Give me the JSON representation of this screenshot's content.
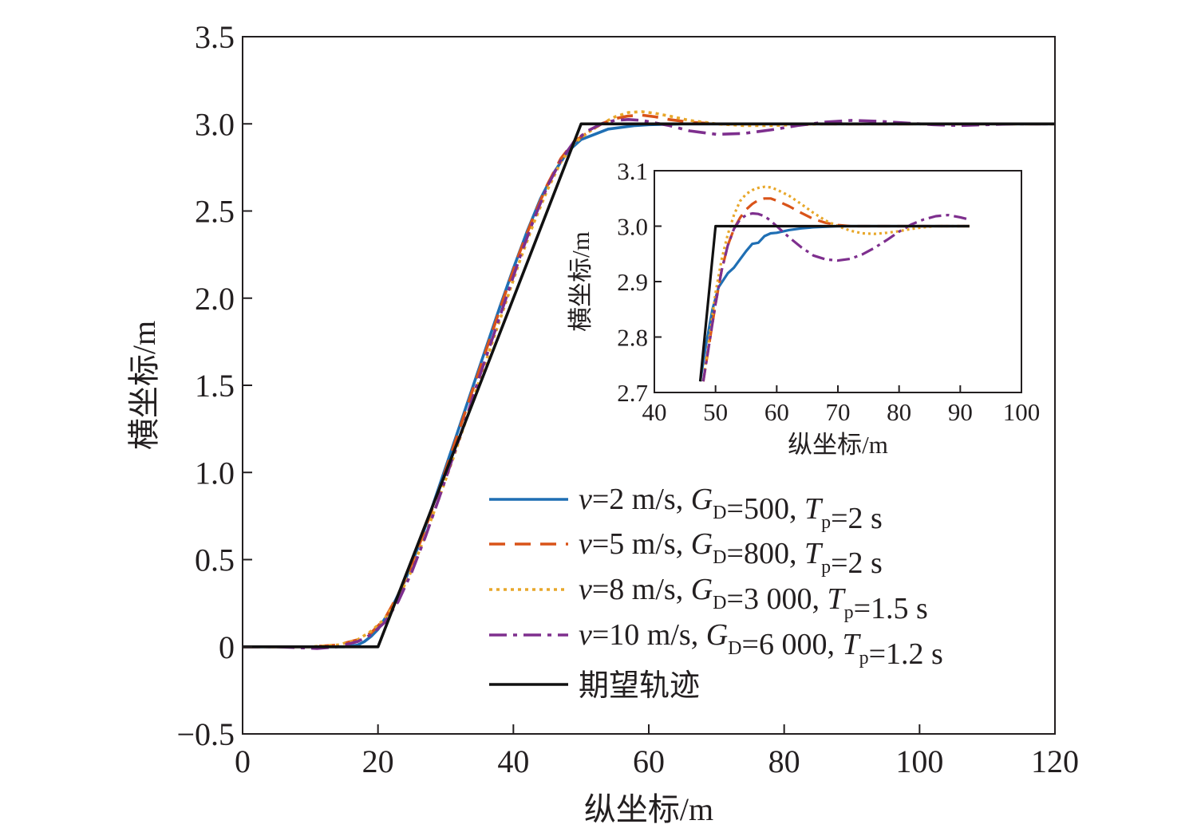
{
  "chart_data": [
    {
      "type": "line",
      "title": "",
      "xlabel": "纵坐标/m",
      "ylabel": "横坐标/m",
      "xlim": [
        0,
        120
      ],
      "ylim": [
        -0.5,
        3.5
      ],
      "xticks": [
        "0",
        "20",
        "40",
        "60",
        "80",
        "100",
        "120"
      ],
      "yticks": [
        "−0.5",
        "0",
        "0.5",
        "1.0",
        "1.5",
        "2.0",
        "2.5",
        "3.0",
        "3.5"
      ],
      "grid": false,
      "legend_position": "bottom-right",
      "legend": [
        {
          "v": "=2 m/s, ",
          "g": "=500, ",
          "t": "=2 s"
        },
        {
          "v": "=5 m/s, ",
          "g": "=800, ",
          "t": "=2 s"
        },
        {
          "v": "=8 m/s, ",
          "g": "=3 000, ",
          "t": "=1.5 s"
        },
        {
          "v": "=10 m/s, ",
          "g": "=6 000, ",
          "t": "=1.2 s"
        }
      ],
      "legend_symbols": {
        "v": "v",
        "g": "G",
        "g_sub": "D",
        "t": "T",
        "t_sub": "p"
      },
      "reference_label": "期望轨迹",
      "series": [
        {
          "key": "v2",
          "color": "#1f6fb4",
          "dash": "solid",
          "points": [
            [
              0,
              0
            ],
            [
              15,
              0
            ],
            [
              17,
              0.01
            ],
            [
              18,
              0.03
            ],
            [
              19,
              0.06
            ],
            [
              20,
              0.1
            ],
            [
              22,
              0.22
            ],
            [
              24,
              0.38
            ],
            [
              26,
              0.58
            ],
            [
              28,
              0.8
            ],
            [
              30,
              1.03
            ],
            [
              32,
              1.26
            ],
            [
              34,
              1.49
            ],
            [
              36,
              1.72
            ],
            [
              38,
              1.95
            ],
            [
              40,
              2.17
            ],
            [
              42,
              2.38
            ],
            [
              44,
              2.57
            ],
            [
              46,
              2.72
            ],
            [
              48,
              2.84
            ],
            [
              50,
              2.91
            ],
            [
              52,
              2.94
            ],
            [
              54,
              2.97
            ],
            [
              56,
              2.98
            ],
            [
              58,
              2.99
            ],
            [
              60,
              2.995
            ],
            [
              65,
              3.0
            ],
            [
              70,
              3.0
            ],
            [
              120,
              3.0
            ]
          ]
        },
        {
          "key": "v5",
          "color": "#d95319",
          "dash": "20 12",
          "points": [
            [
              0,
              0
            ],
            [
              10,
              0
            ],
            [
              14,
              0.01
            ],
            [
              17,
              0.04
            ],
            [
              19,
              0.08
            ],
            [
              21,
              0.16
            ],
            [
              23,
              0.3
            ],
            [
              25,
              0.47
            ],
            [
              27,
              0.68
            ],
            [
              29,
              0.9
            ],
            [
              31,
              1.13
            ],
            [
              33,
              1.36
            ],
            [
              35,
              1.59
            ],
            [
              37,
              1.82
            ],
            [
              39,
              2.05
            ],
            [
              41,
              2.27
            ],
            [
              43,
              2.47
            ],
            [
              45,
              2.65
            ],
            [
              47,
              2.8
            ],
            [
              49,
              2.9
            ],
            [
              51,
              2.95
            ],
            [
              53,
              3.0
            ],
            [
              55,
              3.03
            ],
            [
              57,
              3.045
            ],
            [
              59,
              3.05
            ],
            [
              61,
              3.04
            ],
            [
              63,
              3.025
            ],
            [
              66,
              3.01
            ],
            [
              70,
              3.0
            ],
            [
              80,
              3.0
            ],
            [
              120,
              3.0
            ]
          ]
        },
        {
          "key": "v8",
          "color": "#e8a72a",
          "dash": "4 5",
          "points": [
            [
              0,
              0
            ],
            [
              10,
              0
            ],
            [
              14,
              0.01
            ],
            [
              17,
              0.04
            ],
            [
              19,
              0.09
            ],
            [
              21,
              0.16
            ],
            [
              23,
              0.28
            ],
            [
              25,
              0.44
            ],
            [
              27,
              0.64
            ],
            [
              29,
              0.85
            ],
            [
              31,
              1.07
            ],
            [
              33,
              1.3
            ],
            [
              35,
              1.53
            ],
            [
              37,
              1.76
            ],
            [
              39,
              1.99
            ],
            [
              41,
              2.22
            ],
            [
              43,
              2.43
            ],
            [
              45,
              2.62
            ],
            [
              47,
              2.78
            ],
            [
              49,
              2.89
            ],
            [
              51,
              2.95
            ],
            [
              53,
              3.0
            ],
            [
              55,
              3.04
            ],
            [
              57,
              3.065
            ],
            [
              59,
              3.07
            ],
            [
              61,
              3.06
            ],
            [
              63,
              3.045
            ],
            [
              66,
              3.02
            ],
            [
              70,
              3.0
            ],
            [
              74,
              2.99
            ],
            [
              78,
              2.99
            ],
            [
              82,
              2.995
            ],
            [
              86,
              3.0
            ],
            [
              90,
              3.0
            ],
            [
              120,
              3.0
            ]
          ]
        },
        {
          "key": "v10",
          "color": "#7e2f8e",
          "dash": "22 8 5 8",
          "points": [
            [
              0,
              0
            ],
            [
              5,
              0
            ],
            [
              8,
              -0.005
            ],
            [
              11,
              -0.01
            ],
            [
              14,
              0.0
            ],
            [
              17,
              0.03
            ],
            [
              19,
              0.07
            ],
            [
              21,
              0.14
            ],
            [
              23,
              0.26
            ],
            [
              25,
              0.43
            ],
            [
              27,
              0.63
            ],
            [
              29,
              0.85
            ],
            [
              31,
              1.08
            ],
            [
              33,
              1.31
            ],
            [
              35,
              1.55
            ],
            [
              37,
              1.78
            ],
            [
              39,
              2.01
            ],
            [
              41,
              2.24
            ],
            [
              43,
              2.45
            ],
            [
              45,
              2.64
            ],
            [
              47,
              2.79
            ],
            [
              49,
              2.9
            ],
            [
              51,
              2.96
            ],
            [
              53,
              3.0
            ],
            [
              55,
              3.02
            ],
            [
              57,
              3.025
            ],
            [
              59,
              3.02
            ],
            [
              61,
              3.005
            ],
            [
              63,
              2.99
            ],
            [
              66,
              2.96
            ],
            [
              70,
              2.94
            ],
            [
              74,
              2.945
            ],
            [
              78,
              2.965
            ],
            [
              82,
              2.99
            ],
            [
              86,
              3.01
            ],
            [
              90,
              3.02
            ],
            [
              94,
              3.015
            ],
            [
              98,
              3.005
            ],
            [
              102,
              2.995
            ],
            [
              106,
              2.99
            ],
            [
              110,
              2.995
            ],
            [
              114,
              3.0
            ],
            [
              120,
              3.0
            ]
          ]
        },
        {
          "key": "ref",
          "color": "#111111",
          "dash": "solid",
          "points": [
            [
              0,
              0
            ],
            [
              20,
              0
            ],
            [
              50,
              3.0
            ],
            [
              120,
              3.0
            ]
          ]
        }
      ]
    },
    {
      "type": "line",
      "title": "",
      "xlabel": "纵坐标/m",
      "ylabel": "横坐标/m",
      "xlim": [
        40,
        100
      ],
      "ylim": [
        2.7,
        3.1
      ],
      "xticks": [
        "40",
        "50",
        "60",
        "70",
        "80",
        "90",
        "100"
      ],
      "yticks": [
        "2.7",
        "2.8",
        "2.9",
        "3.0",
        "3.1"
      ],
      "grid": false,
      "series": [
        {
          "key": "v2",
          "color": "#1f6fb4",
          "dash": "solid",
          "points": [
            [
              47.5,
              2.72
            ],
            [
              48.5,
              2.79
            ],
            [
              49.5,
              2.85
            ],
            [
              50.5,
              2.89
            ],
            [
              52,
              2.915
            ],
            [
              53,
              2.925
            ],
            [
              54,
              2.94
            ],
            [
              55,
              2.955
            ],
            [
              56,
              2.968
            ],
            [
              57,
              2.97
            ],
            [
              58,
              2.982
            ],
            [
              59,
              2.987
            ],
            [
              60,
              2.988
            ],
            [
              62,
              2.993
            ],
            [
              64,
              2.996
            ],
            [
              66,
              2.998
            ],
            [
              70,
              3.0
            ],
            [
              91.5,
              3.0
            ]
          ]
        },
        {
          "key": "v5",
          "color": "#d95319",
          "dash": "16 9",
          "points": [
            [
              48,
              2.72
            ],
            [
              49,
              2.79
            ],
            [
              50,
              2.86
            ],
            [
              51,
              2.92
            ],
            [
              52,
              2.965
            ],
            [
              53,
              2.995
            ],
            [
              54,
              3.015
            ],
            [
              55,
              3.03
            ],
            [
              56,
              3.04
            ],
            [
              57,
              3.047
            ],
            [
              58,
              3.05
            ],
            [
              59,
              3.05
            ],
            [
              60,
              3.046
            ],
            [
              62,
              3.036
            ],
            [
              64,
              3.024
            ],
            [
              66,
              3.013
            ],
            [
              68,
              3.006
            ],
            [
              70,
              3.002
            ],
            [
              72,
              3.0
            ],
            [
              80,
              3.0
            ],
            [
              91.5,
              3.0
            ]
          ]
        },
        {
          "key": "v8",
          "color": "#e8a72a",
          "dash": "3 4",
          "points": [
            [
              48,
              2.72
            ],
            [
              49,
              2.8
            ],
            [
              50,
              2.88
            ],
            [
              51,
              2.94
            ],
            [
              52,
              2.985
            ],
            [
              53,
              3.02
            ],
            [
              54,
              3.045
            ],
            [
              55,
              3.058
            ],
            [
              56,
              3.065
            ],
            [
              57,
              3.069
            ],
            [
              58,
              3.071
            ],
            [
              59,
              3.07
            ],
            [
              60,
              3.066
            ],
            [
              62,
              3.055
            ],
            [
              64,
              3.04
            ],
            [
              66,
              3.024
            ],
            [
              68,
              3.01
            ],
            [
              70,
              3.0
            ],
            [
              72,
              2.992
            ],
            [
              74,
              2.987
            ],
            [
              76,
              2.986
            ],
            [
              78,
              2.988
            ],
            [
              80,
              2.991
            ],
            [
              82,
              2.995
            ],
            [
              84,
              2.998
            ],
            [
              86,
              3.0
            ],
            [
              91.5,
              3.0
            ]
          ]
        },
        {
          "key": "v10",
          "color": "#7e2f8e",
          "dash": "16 6 4 6",
          "points": [
            [
              48,
              2.72
            ],
            [
              49,
              2.79
            ],
            [
              50,
              2.86
            ],
            [
              51,
              2.92
            ],
            [
              52,
              2.965
            ],
            [
              53,
              2.995
            ],
            [
              54,
              3.012
            ],
            [
              55,
              3.02
            ],
            [
              56,
              3.023
            ],
            [
              57,
              3.022
            ],
            [
              58,
              3.018
            ],
            [
              59,
              3.01
            ],
            [
              60,
              3.0
            ],
            [
              62,
              2.98
            ],
            [
              64,
              2.962
            ],
            [
              66,
              2.947
            ],
            [
              68,
              2.94
            ],
            [
              70,
              2.938
            ],
            [
              72,
              2.941
            ],
            [
              74,
              2.949
            ],
            [
              76,
              2.961
            ],
            [
              78,
              2.975
            ],
            [
              80,
              2.99
            ],
            [
              82,
              3.003
            ],
            [
              84,
              3.012
            ],
            [
              86,
              3.018
            ],
            [
              88,
              3.02
            ],
            [
              90,
              3.016
            ],
            [
              91.5,
              3.012
            ]
          ]
        },
        {
          "key": "ref",
          "color": "#111111",
          "dash": "solid",
          "points": [
            [
              47.5,
              2.72
            ],
            [
              50,
              3.0
            ],
            [
              91.5,
              3.0
            ]
          ]
        }
      ]
    }
  ]
}
